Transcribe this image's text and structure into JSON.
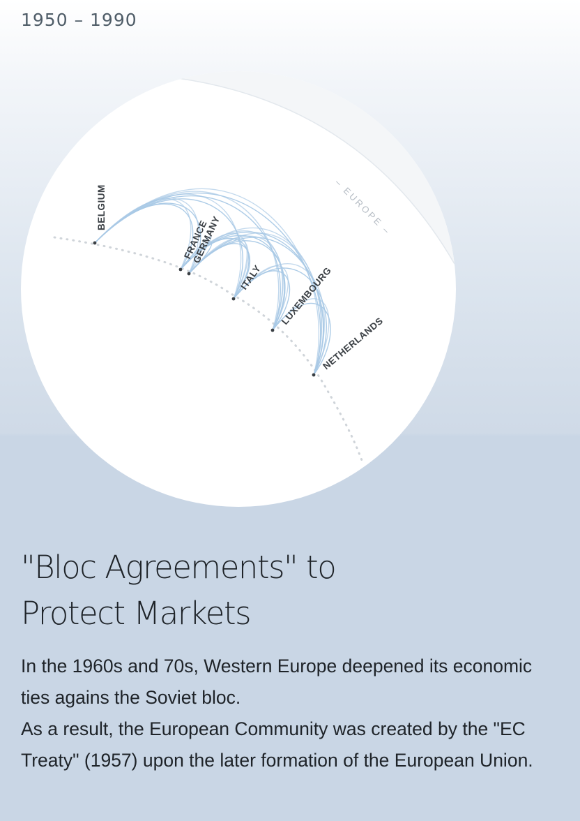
{
  "header": {
    "period": "1950 – 1990"
  },
  "diagram": {
    "region_label": "– EUROPE –",
    "countries": [
      {
        "key": "belgium",
        "label": "BELGIUM"
      },
      {
        "key": "france",
        "label": "FRANCE"
      },
      {
        "key": "germany",
        "label": "GERMANY"
      },
      {
        "key": "italy",
        "label": "ITALY"
      },
      {
        "key": "luxembourg",
        "label": "LUXEMBOURG"
      },
      {
        "key": "netherlands",
        "label": "NETHERLANDS"
      }
    ],
    "link_color": "#a9c9e6",
    "globe_color": "#ffffff",
    "background_color": "#c9d6e5"
  },
  "article": {
    "title_line1": "\"Bloc Agreements\" to",
    "title_line2": "Protect Markets",
    "paragraph1": "In the 1960s and 70s, Western Europe deepened its economic ties agains the Soviet bloc.",
    "paragraph2": "As a result, the European Community was created by the \"EC Treaty\" (1957) upon the later formation of the European Union."
  }
}
